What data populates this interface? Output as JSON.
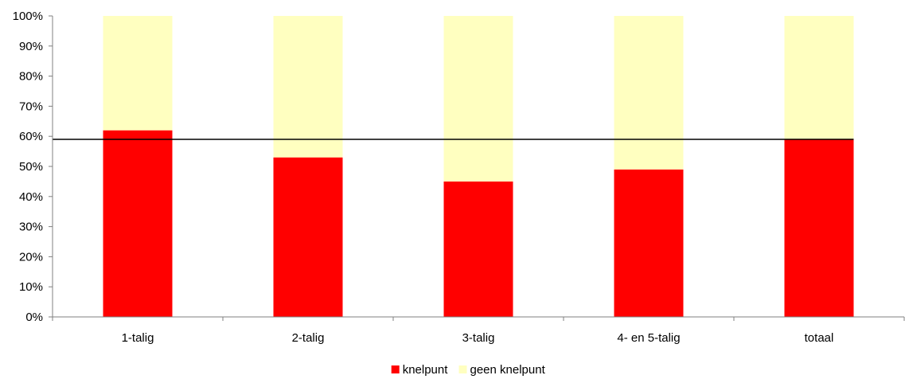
{
  "chart_data": {
    "type": "bar",
    "stacked": true,
    "percent_stacked": true,
    "categories": [
      "1-talig",
      "2-talig",
      "3-talig",
      "4- en 5-talig",
      "totaal"
    ],
    "series": [
      {
        "name": "knelpunt",
        "color": "#ff0000",
        "values": [
          62,
          53,
          45,
          49,
          59
        ]
      },
      {
        "name": "geen knelpunt",
        "color": "#ffffc0",
        "values": [
          38,
          47,
          55,
          51,
          41
        ]
      }
    ],
    "reference_line": {
      "value": 59,
      "color": "#000000"
    },
    "ylim": [
      0,
      100
    ],
    "yticks": [
      "0%",
      "10%",
      "20%",
      "30%",
      "40%",
      "50%",
      "60%",
      "70%",
      "80%",
      "90%",
      "100%"
    ],
    "grid": false,
    "legend_position": "bottom-center"
  }
}
